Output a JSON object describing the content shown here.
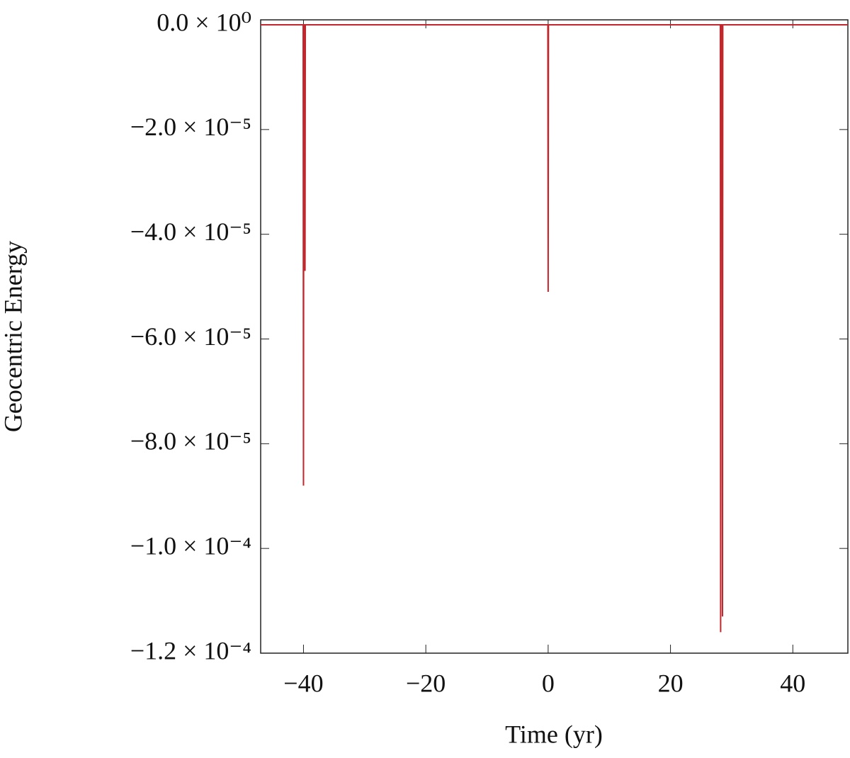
{
  "chart_data": {
    "type": "line",
    "xlabel": "Time (yr)",
    "ylabel": "Geocentric Energy",
    "xlim": [
      -47,
      49
    ],
    "ylim": [
      -0.00012,
      9.5e-07
    ],
    "xticks": [
      {
        "value": -40,
        "label": "−40"
      },
      {
        "value": -20,
        "label": "−20"
      },
      0,
      20,
      40
    ],
    "yticks": [
      {
        "value": 0,
        "label": "0.0 × 10⁰"
      },
      {
        "value": -2e-05,
        "label": "−2.0 × 10⁻⁵"
      },
      {
        "value": -4e-05,
        "label": "−4.0 × 10⁻⁵"
      },
      {
        "value": -6e-05,
        "label": "−6.0 × 10⁻⁵"
      },
      {
        "value": -8e-05,
        "label": "−8.0 × 10⁻⁵"
      },
      {
        "value": -0.0001,
        "label": "−1.0 × 10⁻⁴"
      },
      {
        "value": -0.00012,
        "label": "−1.2 × 10⁻⁴"
      }
    ],
    "series": [
      {
        "color": "#c0282d",
        "x": [
          -47,
          -40.05,
          -40,
          -39.95,
          -39.8,
          -39.75,
          -39.7,
          -0.05,
          0,
          0.05,
          28.15,
          28.2,
          28.25,
          28.45,
          28.5,
          28.55,
          49
        ],
        "values": [
          0,
          0,
          -8.8e-05,
          0,
          0,
          -4.7e-05,
          0,
          0,
          -5.1e-05,
          0,
          0,
          -0.000116,
          0,
          0,
          -0.000113,
          0,
          0
        ]
      }
    ]
  }
}
